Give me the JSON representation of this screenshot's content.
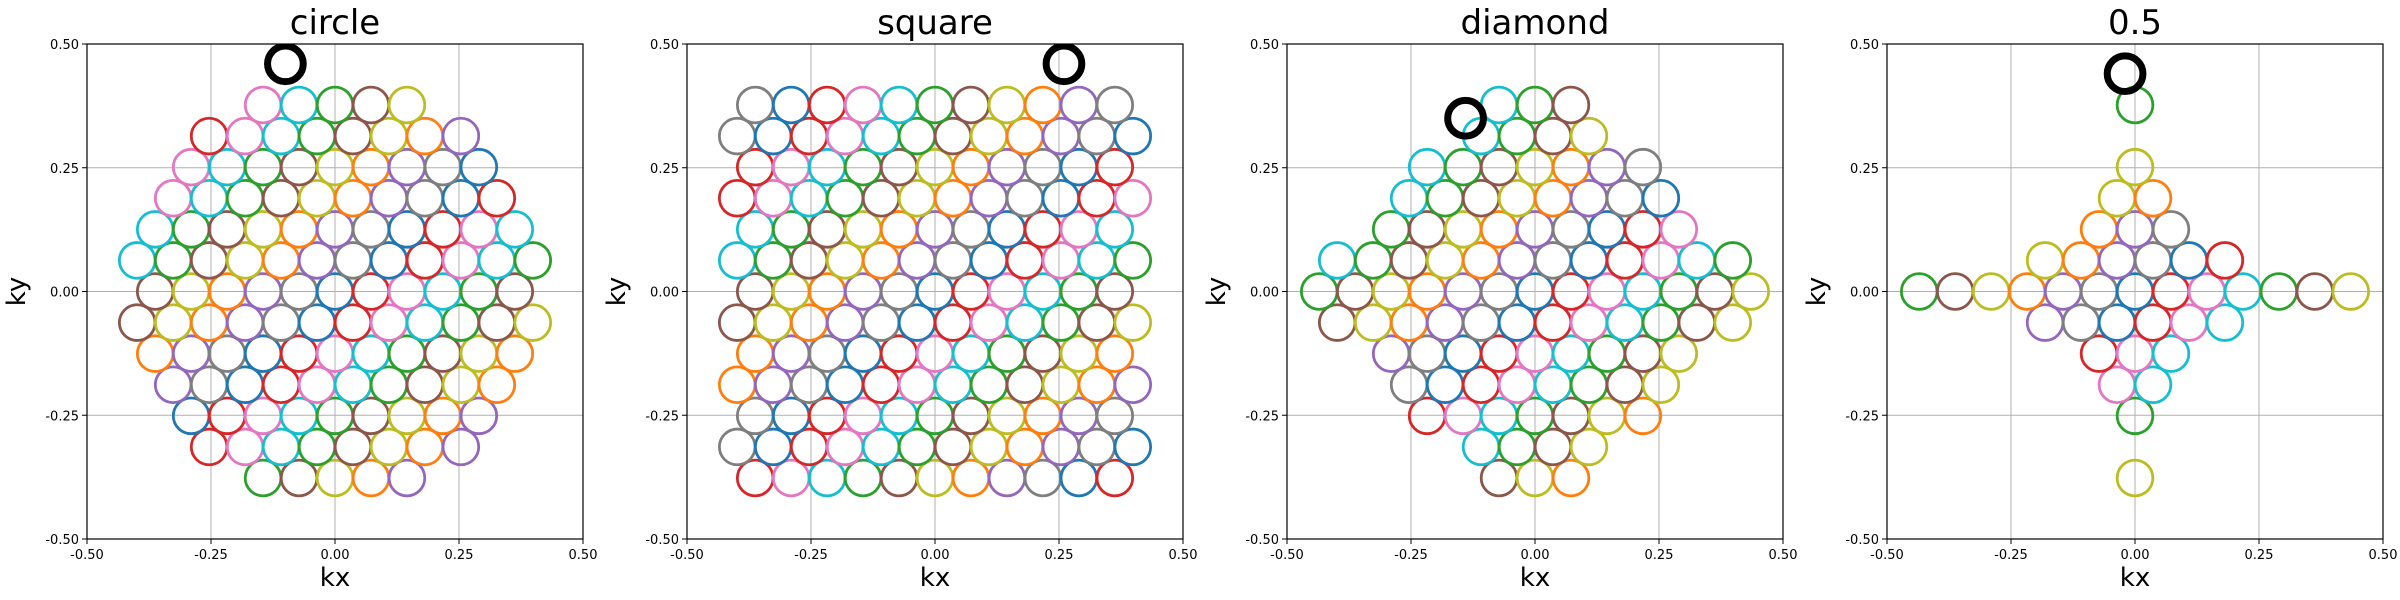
{
  "chart_data": [
    {
      "type": "scatter",
      "title": "circle",
      "xlabel": "kx",
      "ylabel": "ky",
      "xlim": [
        -0.5,
        0.5
      ],
      "ylim": [
        -0.5,
        0.5
      ],
      "xticks": [
        "-0.50",
        "-0.25",
        "0.00",
        "0.25",
        "0.50"
      ],
      "yticks": [
        "-0.50",
        "-0.25",
        "0.00",
        "0.25",
        "0.50"
      ],
      "grid": true,
      "marker": "hollow circle",
      "shape": "circle",
      "extent": 0.43,
      "highlight": {
        "x": -0.1,
        "y": 0.46
      }
    },
    {
      "type": "scatter",
      "title": "square",
      "xlabel": "kx",
      "ylabel": "ky",
      "xlim": [
        -0.5,
        0.5
      ],
      "ylim": [
        -0.5,
        0.5
      ],
      "xticks": [
        "-0.50",
        "-0.25",
        "0.00",
        "0.25",
        "0.50"
      ],
      "yticks": [
        "-0.50",
        "-0.25",
        "0.00",
        "0.25",
        "0.50"
      ],
      "grid": true,
      "marker": "hollow circle",
      "shape": "square",
      "extent": 0.43,
      "highlight": {
        "x": 0.26,
        "y": 0.46
      }
    },
    {
      "type": "scatter",
      "title": "diamond",
      "xlabel": "kx",
      "ylabel": "ky",
      "xlim": [
        -0.5,
        0.5
      ],
      "ylim": [
        -0.5,
        0.5
      ],
      "xticks": [
        "-0.50",
        "-0.25",
        "0.00",
        "0.25",
        "0.50"
      ],
      "yticks": [
        "-0.50",
        "-0.25",
        "0.00",
        "0.25",
        "0.50"
      ],
      "grid": true,
      "marker": "hollow circle",
      "shape": "diamond",
      "extent": 0.47,
      "highlight": {
        "x": -0.14,
        "y": 0.35
      }
    },
    {
      "type": "scatter",
      "title": "0.5",
      "xlabel": "kx",
      "ylabel": "ky",
      "xlim": [
        -0.5,
        0.5
      ],
      "ylim": [
        -0.5,
        0.5
      ],
      "xticks": [
        "-0.50",
        "-0.25",
        "0.00",
        "0.25",
        "0.50"
      ],
      "yticks": [
        "-0.50",
        "-0.25",
        "0.00",
        "0.25",
        "0.50"
      ],
      "grid": true,
      "marker": "hollow circle",
      "shape": "astroid",
      "extent": 0.47,
      "highlight": {
        "x": -0.02,
        "y": 0.44
      }
    }
  ],
  "colors": {
    "palette": [
      "#1f77b4",
      "#ff7f0e",
      "#2ca02c",
      "#d62728",
      "#9467bd",
      "#8c564b",
      "#e377c2",
      "#7f7f7f",
      "#bcbd22",
      "#17becf"
    ],
    "highlight": "#000000",
    "grid": "#b0b0b0"
  }
}
